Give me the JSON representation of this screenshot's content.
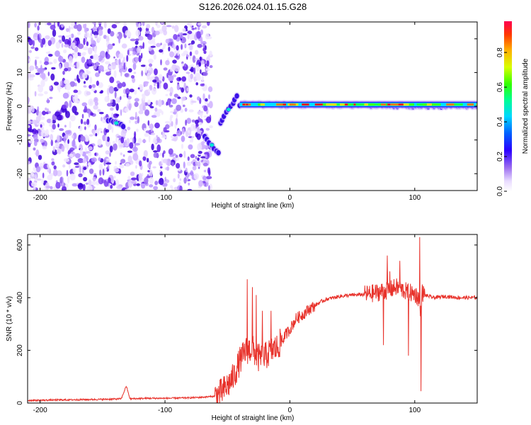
{
  "figure_title": "S126.2026.024.01.15.G28",
  "colorbar": {
    "label": "Normalized spectral amplitude",
    "ticks": [
      "0.0",
      "0.2",
      "0.4",
      "0.6",
      "0.8"
    ],
    "tick_values": [
      0.0,
      0.2,
      0.4,
      0.6,
      0.8
    ],
    "range": [
      0.0,
      0.98
    ]
  },
  "chart_data": [
    {
      "type": "heatmap",
      "title": "",
      "xlabel": "Height of straight line (km)",
      "ylabel": "Frequency (Hz)",
      "xlim": [
        -210,
        150
      ],
      "ylim": [
        -25,
        25
      ],
      "xticks": [
        -200,
        -100,
        0,
        100
      ],
      "xtick_labels": [
        "-200",
        "-100",
        "0",
        "100"
      ],
      "yticks": [
        -20,
        -10,
        0,
        10,
        20
      ],
      "ytick_labels": [
        "-20",
        "-10",
        "0",
        "10",
        "20"
      ],
      "noise_region_x": [
        -210,
        -63
      ],
      "signal_segments": [
        {
          "x": [
            -145,
            -133
          ],
          "freq": [
            -4,
            -6
          ],
          "amplitude": 0.35
        },
        {
          "x": [
            -68,
            -57
          ],
          "freq": [
            -9,
            -14
          ],
          "amplitude": 0.4
        },
        {
          "x": [
            -56,
            -42
          ],
          "freq": [
            -5,
            3
          ],
          "amplitude": 0.3
        },
        {
          "x": [
            -40,
            150
          ],
          "freq": [
            0.5,
            0
          ],
          "amplitude": 0.85
        }
      ]
    },
    {
      "type": "line",
      "title": "",
      "xlabel": "Height of straight line (km)",
      "ylabel": "SNR (10 * v/v)",
      "xlim": [
        -210,
        150
      ],
      "ylim": [
        0,
        640
      ],
      "xticks": [
        -200,
        -100,
        0,
        100
      ],
      "xtick_labels": [
        "-200",
        "-100",
        "0",
        "100"
      ],
      "yticks": [
        0,
        200,
        400,
        600
      ],
      "ytick_labels": [
        "0",
        "200",
        "400",
        "600"
      ],
      "series": [
        {
          "name": "SNR",
          "color": "#e8322b",
          "x": [
            -210,
            -180,
            -150,
            -135,
            -131,
            -128,
            -115,
            -100,
            -80,
            -70,
            -60,
            -55,
            -50,
            -45,
            -40,
            -35,
            -30,
            -25,
            -20,
            -15,
            -10,
            -5,
            0,
            5,
            10,
            15,
            20,
            25,
            30,
            40,
            50,
            60,
            65,
            70,
            75,
            80,
            85,
            90,
            95,
            100,
            103,
            105,
            106,
            108,
            115,
            125,
            135,
            150
          ],
          "y": [
            10,
            12,
            14,
            16,
            65,
            16,
            18,
            18,
            20,
            22,
            26,
            40,
            65,
            100,
            160,
            200,
            205,
            170,
            175,
            200,
            210,
            250,
            280,
            320,
            335,
            355,
            370,
            385,
            395,
            405,
            410,
            412,
            415,
            420,
            425,
            430,
            440,
            430,
            420,
            415,
            400,
            330,
            420,
            410,
            400,
            405,
            400,
            400
          ]
        }
      ],
      "spikes": [
        {
          "x": -34,
          "y": 470
        },
        {
          "x": -30,
          "y": 440
        },
        {
          "x": -27,
          "y": 410
        },
        {
          "x": -22,
          "y": 350
        },
        {
          "x": -15,
          "y": 350
        },
        {
          "x": 78,
          "y": 560
        },
        {
          "x": 80,
          "y": 500
        },
        {
          "x": 88,
          "y": 540
        },
        {
          "x": 98,
          "y": 410
        },
        {
          "x": 104,
          "y": 630
        },
        {
          "x": 105,
          "y": 580
        }
      ],
      "dips": [
        {
          "x": 75,
          "y": 220
        },
        {
          "x": 95,
          "y": 180
        },
        {
          "x": 105,
          "y": 45
        }
      ]
    }
  ]
}
